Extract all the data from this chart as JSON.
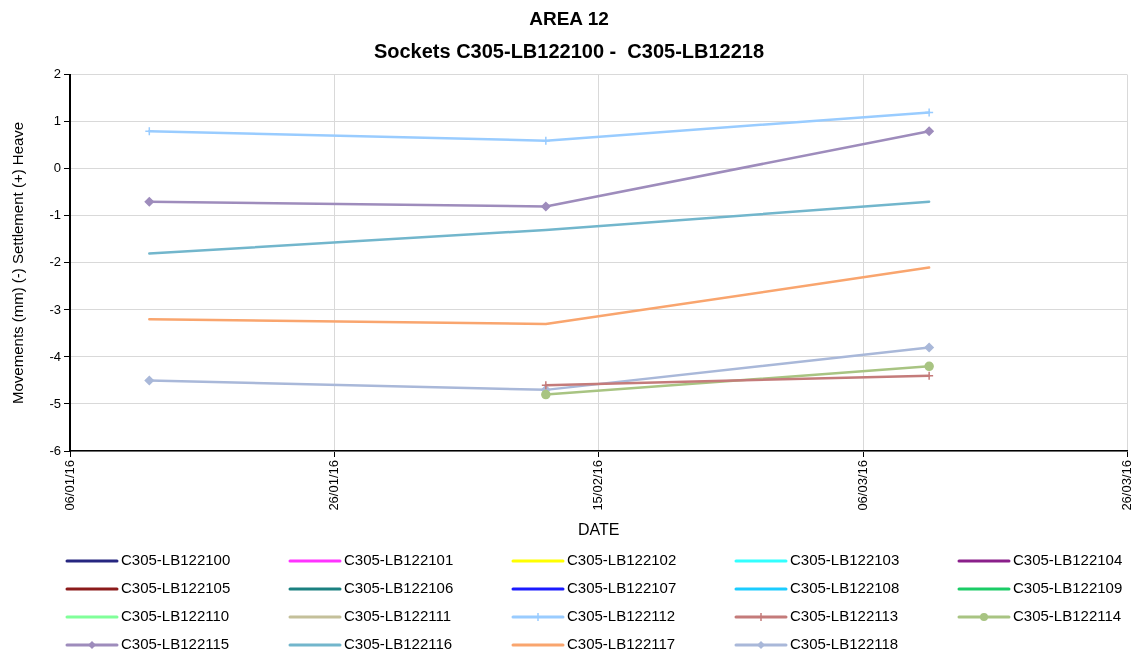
{
  "chart_data": {
    "type": "line",
    "title": "AREA 12",
    "subtitle": "Sockets C305-LB122100 -  C305-LB12218",
    "xlabel": "DATE",
    "ylabel": "Movements (mm) (-) Settlement (+) Heave",
    "x": [
      "2016-01-12",
      "2016-02-11",
      "2016-03-11"
    ],
    "xlim": [
      "2016-01-06",
      "2016-03-26"
    ],
    "xticks": [
      {
        "value": "2016-01-06",
        "label": "06/01/16"
      },
      {
        "value": "2016-01-26",
        "label": "26/01/16"
      },
      {
        "value": "2016-02-15",
        "label": "15/02/16"
      },
      {
        "value": "2016-03-06",
        "label": "06/03/16"
      },
      {
        "value": "2016-03-26",
        "label": "26/03/16"
      }
    ],
    "ylim": [
      -6,
      2
    ],
    "yticks": [
      -6,
      -5,
      -4,
      -3,
      -2,
      -1,
      0,
      1,
      2
    ],
    "grid": true,
    "legend": "bottom",
    "series": [
      {
        "name": "C305-LB122100",
        "color": "#262680",
        "values": [
          null,
          null,
          null
        ]
      },
      {
        "name": "C305-LB122101",
        "color": "#ff33ff",
        "values": [
          null,
          null,
          null
        ]
      },
      {
        "name": "C305-LB122102",
        "color": "#ffff00",
        "values": [
          null,
          null,
          null
        ]
      },
      {
        "name": "C305-LB122103",
        "color": "#33ffff",
        "values": [
          null,
          null,
          null
        ]
      },
      {
        "name": "C305-LB122104",
        "color": "#8a1f8a",
        "values": [
          null,
          null,
          null
        ]
      },
      {
        "name": "C305-LB122105",
        "color": "#8b1a1a",
        "values": [
          null,
          null,
          null
        ]
      },
      {
        "name": "C305-LB122106",
        "color": "#1a8080",
        "values": [
          null,
          null,
          null
        ]
      },
      {
        "name": "C305-LB122107",
        "color": "#1a1aff",
        "values": [
          null,
          null,
          null
        ]
      },
      {
        "name": "C305-LB122108",
        "color": "#1accff",
        "values": [
          null,
          null,
          null
        ]
      },
      {
        "name": "C305-LB122109",
        "color": "#1acc66",
        "values": [
          null,
          null,
          null
        ]
      },
      {
        "name": "C305-LB122110",
        "color": "#80ff99",
        "values": [
          null,
          null,
          null
        ]
      },
      {
        "name": "C305-LB122111",
        "color": "#c4c09a",
        "values": [
          null,
          null,
          null
        ]
      },
      {
        "name": "C305-LB122112",
        "color": "#99ccff",
        "marker": "cross",
        "values": [
          0.8,
          0.6,
          1.2
        ]
      },
      {
        "name": "C305-LB122113",
        "color": "#c47b7a",
        "marker": "cross",
        "values": [
          null,
          -4.6,
          -4.4
        ]
      },
      {
        "name": "C305-LB122114",
        "color": "#a8c482",
        "marker": "circle",
        "values": [
          null,
          -4.8,
          -4.2
        ]
      },
      {
        "name": "C305-LB122115",
        "color": "#9e8cbc",
        "marker": "diamond",
        "values": [
          -0.7,
          -0.8,
          0.8
        ]
      },
      {
        "name": "C305-LB122116",
        "color": "#72b6cc",
        "values": [
          -1.8,
          -1.3,
          -0.7
        ]
      },
      {
        "name": "C305-LB122117",
        "color": "#f9a56e",
        "values": [
          -3.2,
          -3.3,
          -2.1
        ]
      },
      {
        "name": "C305-LB122118",
        "color": "#a9b8d9",
        "marker": "diamond",
        "values": [
          -4.5,
          -4.7,
          -3.8
        ]
      }
    ]
  }
}
